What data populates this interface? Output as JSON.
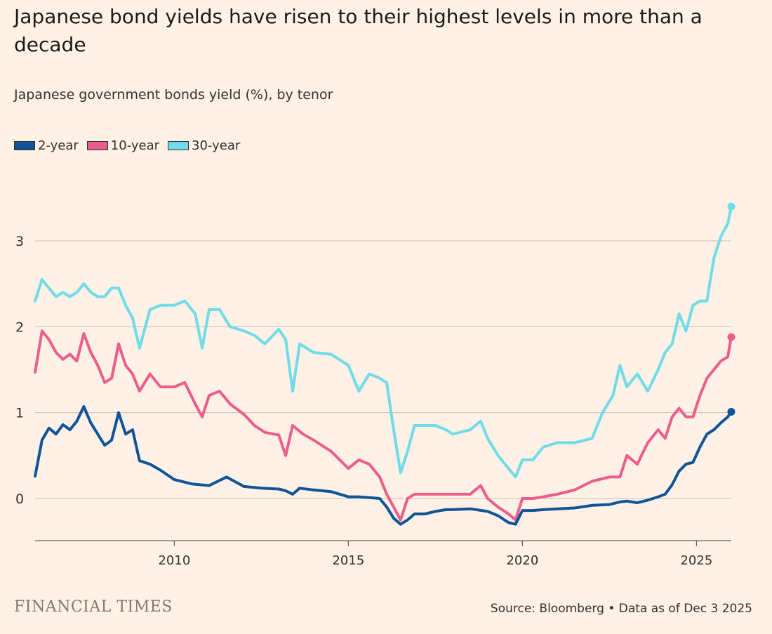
{
  "title": "Japanese bond yields have risen to their highest levels in more than a decade",
  "subtitle": "Japanese government bonds yield (%), by tenor",
  "source": "Source: Bloomberg • Data as of Dec 3 2025",
  "brand": "FINANCIAL TIMES",
  "colors": {
    "background": "#FFF1E5",
    "2-year": "#0F5499",
    "10-year": "#EB5E8D",
    "30-year": "#70DBE9",
    "grid": "#C9BFB5",
    "axis": "#66605C"
  },
  "chart_data": {
    "type": "line",
    "title": "Japanese bond yields have risen to their highest levels in more than a decade",
    "subtitle": "Japanese government bonds yield (%), by tenor",
    "xlabel": "",
    "ylabel": "",
    "xlim": [
      2006.0,
      2026.0
    ],
    "ylim": [
      -0.5,
      3.5
    ],
    "x_ticks": [
      2010,
      2015,
      2020,
      2025
    ],
    "y_ticks": [
      0,
      1,
      2,
      3
    ],
    "grid": true,
    "legend_position": "top-left",
    "series": [
      {
        "name": "2-year",
        "color": "#0F5499",
        "x": [
          2006.0,
          2006.2,
          2006.4,
          2006.6,
          2006.8,
          2007.0,
          2007.2,
          2007.4,
          2007.6,
          2007.8,
          2008.0,
          2008.2,
          2008.4,
          2008.6,
          2008.8,
          2009.0,
          2009.3,
          2009.6,
          2010.0,
          2010.5,
          2011.0,
          2011.5,
          2012.0,
          2012.5,
          2013.0,
          2013.2,
          2013.4,
          2013.6,
          2014.0,
          2014.5,
          2015.0,
          2015.3,
          2015.6,
          2015.9,
          2016.1,
          2016.3,
          2016.5,
          2016.7,
          2016.9,
          2017.2,
          2017.5,
          2017.8,
          2018.0,
          2018.5,
          2019.0,
          2019.3,
          2019.6,
          2019.8,
          2020.0,
          2020.3,
          2020.6,
          2021.0,
          2021.5,
          2022.0,
          2022.5,
          2022.8,
          2023.0,
          2023.3,
          2023.6,
          2023.9,
          2024.1,
          2024.3,
          2024.5,
          2024.7,
          2024.9,
          2025.1,
          2025.3,
          2025.5,
          2025.7,
          2025.9,
          2026.0
        ],
        "values": [
          0.26,
          0.68,
          0.82,
          0.75,
          0.86,
          0.8,
          0.9,
          1.07,
          0.88,
          0.75,
          0.62,
          0.68,
          1.0,
          0.75,
          0.8,
          0.44,
          0.4,
          0.33,
          0.22,
          0.17,
          0.15,
          0.25,
          0.14,
          0.12,
          0.11,
          0.09,
          0.05,
          0.12,
          0.1,
          0.08,
          0.02,
          0.02,
          0.01,
          0.0,
          -0.1,
          -0.23,
          -0.3,
          -0.25,
          -0.18,
          -0.18,
          -0.15,
          -0.13,
          -0.13,
          -0.12,
          -0.15,
          -0.2,
          -0.28,
          -0.3,
          -0.14,
          -0.14,
          -0.13,
          -0.12,
          -0.11,
          -0.08,
          -0.07,
          -0.04,
          -0.03,
          -0.05,
          -0.02,
          0.02,
          0.05,
          0.16,
          0.32,
          0.4,
          0.42,
          0.6,
          0.75,
          0.8,
          0.88,
          0.95,
          1.01
        ]
      },
      {
        "name": "10-year",
        "color": "#EB5E8D",
        "x": [
          2006.0,
          2006.2,
          2006.4,
          2006.6,
          2006.8,
          2007.0,
          2007.2,
          2007.4,
          2007.6,
          2007.8,
          2008.0,
          2008.2,
          2008.4,
          2008.6,
          2008.8,
          2009.0,
          2009.3,
          2009.6,
          2010.0,
          2010.3,
          2010.6,
          2010.8,
          2011.0,
          2011.3,
          2011.6,
          2012.0,
          2012.3,
          2012.6,
          2013.0,
          2013.2,
          2013.4,
          2013.7,
          2014.0,
          2014.5,
          2015.0,
          2015.3,
          2015.6,
          2015.9,
          2016.1,
          2016.3,
          2016.5,
          2016.7,
          2016.9,
          2017.2,
          2017.5,
          2017.8,
          2018.0,
          2018.5,
          2018.8,
          2019.0,
          2019.3,
          2019.6,
          2019.8,
          2020.0,
          2020.3,
          2020.6,
          2021.0,
          2021.5,
          2022.0,
          2022.5,
          2022.8,
          2023.0,
          2023.3,
          2023.6,
          2023.9,
          2024.1,
          2024.3,
          2024.5,
          2024.7,
          2024.9,
          2025.1,
          2025.3,
          2025.5,
          2025.7,
          2025.9,
          2026.0
        ],
        "values": [
          1.47,
          1.95,
          1.85,
          1.7,
          1.62,
          1.68,
          1.6,
          1.92,
          1.7,
          1.55,
          1.35,
          1.4,
          1.8,
          1.55,
          1.45,
          1.25,
          1.45,
          1.3,
          1.3,
          1.35,
          1.1,
          0.95,
          1.2,
          1.25,
          1.1,
          0.98,
          0.85,
          0.77,
          0.74,
          0.5,
          0.85,
          0.75,
          0.68,
          0.55,
          0.35,
          0.45,
          0.4,
          0.25,
          0.05,
          -0.1,
          -0.25,
          0.0,
          0.05,
          0.05,
          0.05,
          0.05,
          0.05,
          0.05,
          0.15,
          0.0,
          -0.1,
          -0.18,
          -0.25,
          0.0,
          0.0,
          0.02,
          0.05,
          0.1,
          0.2,
          0.25,
          0.25,
          0.5,
          0.4,
          0.65,
          0.8,
          0.7,
          0.95,
          1.05,
          0.95,
          0.95,
          1.2,
          1.4,
          1.5,
          1.6,
          1.65,
          1.88
        ]
      },
      {
        "name": "30-year",
        "color": "#70DBE9",
        "x": [
          2006.0,
          2006.2,
          2006.4,
          2006.6,
          2006.8,
          2007.0,
          2007.2,
          2007.4,
          2007.6,
          2007.8,
          2008.0,
          2008.2,
          2008.4,
          2008.6,
          2008.8,
          2009.0,
          2009.3,
          2009.6,
          2010.0,
          2010.3,
          2010.6,
          2010.8,
          2011.0,
          2011.3,
          2011.6,
          2012.0,
          2012.3,
          2012.6,
          2013.0,
          2013.2,
          2013.4,
          2013.6,
          2014.0,
          2014.5,
          2015.0,
          2015.3,
          2015.6,
          2015.9,
          2016.1,
          2016.3,
          2016.5,
          2016.7,
          2016.9,
          2017.2,
          2017.5,
          2017.8,
          2018.0,
          2018.5,
          2018.8,
          2019.0,
          2019.3,
          2019.6,
          2019.8,
          2020.0,
          2020.3,
          2020.6,
          2021.0,
          2021.5,
          2022.0,
          2022.3,
          2022.6,
          2022.8,
          2023.0,
          2023.3,
          2023.6,
          2023.9,
          2024.1,
          2024.3,
          2024.5,
          2024.7,
          2024.9,
          2025.1,
          2025.3,
          2025.5,
          2025.7,
          2025.9,
          2026.0
        ],
        "values": [
          2.3,
          2.55,
          2.45,
          2.35,
          2.4,
          2.35,
          2.4,
          2.5,
          2.4,
          2.35,
          2.35,
          2.45,
          2.45,
          2.25,
          2.1,
          1.75,
          2.2,
          2.25,
          2.25,
          2.3,
          2.15,
          1.75,
          2.2,
          2.2,
          2.0,
          1.95,
          1.9,
          1.8,
          1.97,
          1.85,
          1.25,
          1.8,
          1.7,
          1.68,
          1.55,
          1.25,
          1.45,
          1.4,
          1.35,
          0.8,
          0.3,
          0.55,
          0.85,
          0.85,
          0.85,
          0.8,
          0.75,
          0.8,
          0.9,
          0.7,
          0.5,
          0.35,
          0.25,
          0.45,
          0.45,
          0.6,
          0.65,
          0.65,
          0.7,
          1.0,
          1.2,
          1.55,
          1.3,
          1.45,
          1.25,
          1.5,
          1.7,
          1.8,
          2.15,
          1.95,
          2.25,
          2.3,
          2.3,
          2.8,
          3.05,
          3.2,
          3.4
        ]
      }
    ]
  }
}
